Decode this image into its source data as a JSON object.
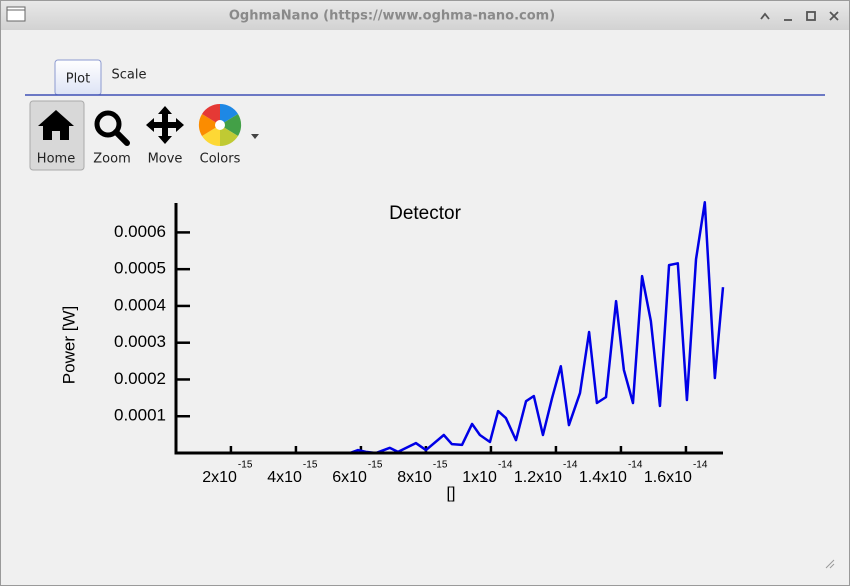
{
  "window": {
    "title": "OghmaNano (https://www.oghma-nano.com)"
  },
  "tabs": [
    "Plot",
    "Scale"
  ],
  "toolbar": [
    "Home",
    "Zoom",
    "Move",
    "Colors"
  ],
  "chart_data": {
    "type": "line",
    "title": "Detector",
    "x_label": "[]",
    "y_label": "Power [W]",
    "color": "#0000e6",
    "x": [
      3.1e-16,
      2.58e-15,
      5.35e-15,
      5.66e-15,
      5.91e-15,
      6.15e-15,
      6.46e-15,
      6.89e-15,
      7.14e-15,
      7.69e-15,
      8e-15,
      8.55e-15,
      8.8e-15,
      9.11e-15,
      9.42e-15,
      9.66e-15,
      9.97e-15,
      1.022e-14,
      1.046e-14,
      1.077e-14,
      1.108e-14,
      1.132e-14,
      1.16e-14,
      1.188e-14,
      1.215e-14,
      1.24e-14,
      1.274e-14,
      1.302e-14,
      1.326e-14,
      1.354e-14,
      1.385e-14,
      1.409e-14,
      1.437e-14,
      1.465e-14,
      1.492e-14,
      1.52e-14,
      1.548e-14,
      1.575e-14,
      1.603e-14,
      1.631e-14,
      1.658e-14,
      1.689e-14,
      1.714e-14
    ],
    "values": [
      0,
      0,
      0,
      0,
      8e-06,
      3e-06,
      0,
      1.4e-05,
      3e-06,
      2.7e-05,
      8e-06,
      4.9e-05,
      2.4e-05,
      2.2e-05,
      7.9e-05,
      4.9e-05,
      3e-05,
      0.000114,
      9.5e-05,
      3.5e-05,
      0.000141,
      0.000155,
      4.9e-05,
      0.000149,
      0.000236,
      7.6e-05,
      0.000163,
      0.000329,
      0.000136,
      0.000152,
      0.000413,
      0.000226,
      0.000136,
      0.000481,
      0.000359,
      0.000128,
      0.000511,
      0.000516,
      0.000144,
      0.000527,
      0.000682,
      0.000204,
      0.000451
    ],
    "xlim": [
      3.1e-16,
      1.714e-14
    ],
    "ylim": [
      0,
      0.00068
    ],
    "xticks": [
      {
        "value": 2e-15,
        "label": "2x10",
        "exponent": "-15"
      },
      {
        "value": 4e-15,
        "label": "4x10",
        "exponent": "-15"
      },
      {
        "value": 6e-15,
        "label": "6x10",
        "exponent": "-15"
      },
      {
        "value": 8e-15,
        "label": "8x10",
        "exponent": "-15"
      },
      {
        "value": 1e-14,
        "label": "1x10",
        "exponent": "-14"
      },
      {
        "value": 1.2e-14,
        "label": "1.2x10",
        "exponent": "-14"
      },
      {
        "value": 1.4e-14,
        "label": "1.4x10",
        "exponent": "-14"
      },
      {
        "value": 1.6e-14,
        "label": "1.6x10",
        "exponent": "-14"
      }
    ],
    "yticks": [
      0.0001,
      0.0002,
      0.0003,
      0.0004,
      0.0005,
      0.0006
    ]
  }
}
